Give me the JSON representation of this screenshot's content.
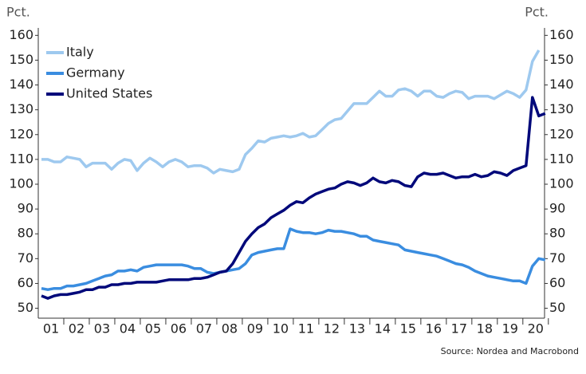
{
  "chart_data": {
    "type": "line",
    "y_label": "Pct.",
    "y2_label": "Pct.",
    "source": "Source: Nordea and Macrobond",
    "x": [
      2001.125,
      2001.375,
      2001.625,
      2001.875,
      2002.125,
      2002.375,
      2002.625,
      2002.875,
      2003.125,
      2003.375,
      2003.625,
      2003.875,
      2004.125,
      2004.375,
      2004.625,
      2004.875,
      2005.125,
      2005.375,
      2005.625,
      2005.875,
      2006.125,
      2006.375,
      2006.625,
      2006.875,
      2007.125,
      2007.375,
      2007.625,
      2007.875,
      2008.125,
      2008.375,
      2008.625,
      2008.875,
      2009.125,
      2009.375,
      2009.625,
      2009.875,
      2010.125,
      2010.375,
      2010.625,
      2010.875,
      2011.125,
      2011.375,
      2011.625,
      2011.875,
      2012.125,
      2012.375,
      2012.625,
      2012.875,
      2013.125,
      2013.375,
      2013.625,
      2013.875,
      2014.125,
      2014.375,
      2014.625,
      2014.875,
      2015.125,
      2015.375,
      2015.625,
      2015.875,
      2016.125,
      2016.375,
      2016.625,
      2016.875,
      2017.125,
      2017.375,
      2017.625,
      2017.875,
      2018.125,
      2018.375,
      2018.625,
      2018.875,
      2019.125,
      2019.375,
      2019.625,
      2019.875,
      2020.125,
      2020.375,
      2020.625,
      2020.875
    ],
    "series": [
      {
        "name": "Italy",
        "color": "#9ec9ef",
        "values": [
          110,
          110,
          109,
          109,
          111,
          110.5,
          110,
          107,
          108.5,
          108.5,
          108.5,
          106,
          108.5,
          110,
          109.5,
          105.5,
          108.5,
          110.5,
          109,
          107,
          109,
          110,
          109,
          107,
          107.5,
          107.5,
          106.5,
          104.5,
          106,
          105.5,
          105,
          106,
          112,
          114.5,
          117.5,
          117,
          118.5,
          119,
          119.5,
          119,
          119.5,
          120.5,
          119,
          119.5,
          122,
          124.5,
          126,
          126.5,
          129.5,
          132.5,
          132.5,
          132.5,
          135,
          137.5,
          135.5,
          135.5,
          138,
          138.5,
          137.5,
          135.5,
          137.5,
          137.5,
          135.5,
          135,
          136.5,
          137.5,
          137,
          134.5,
          135.5,
          135.5,
          135.5,
          134.5,
          136,
          137.5,
          136.5,
          135,
          138,
          149.5,
          154,
          null
        ]
      },
      {
        "name": "Germany",
        "color": "#3a8de0",
        "values": [
          58,
          57.5,
          58,
          58,
          59,
          59,
          59.5,
          60,
          61,
          62,
          63,
          63.5,
          65,
          65,
          65.5,
          65,
          66.5,
          67,
          67.5,
          67.5,
          67.5,
          67.5,
          67.5,
          67,
          66,
          66,
          64.5,
          64,
          64.5,
          65,
          65.5,
          66,
          68,
          71.5,
          72.5,
          73,
          73.5,
          74,
          74,
          82,
          81,
          80.5,
          80.5,
          80,
          80.5,
          81.5,
          81,
          81,
          80.5,
          80,
          79,
          79,
          77.5,
          77,
          76.5,
          76,
          75.5,
          73.5,
          73,
          72.5,
          72,
          71.5,
          71,
          70,
          69,
          68,
          67.5,
          66.5,
          65,
          64,
          63,
          62.5,
          62,
          61.5,
          61,
          61,
          60,
          67,
          70,
          69.5
        ]
      },
      {
        "name": "United States",
        "color": "#00087a",
        "values": [
          55,
          54,
          55,
          55.5,
          55.5,
          56,
          56.5,
          57.5,
          57.5,
          58.5,
          58.5,
          59.5,
          59.5,
          60,
          60,
          60.5,
          60.5,
          60.5,
          60.5,
          61,
          61.5,
          61.5,
          61.5,
          61.5,
          62,
          62,
          62.5,
          63.5,
          64.5,
          65,
          68,
          72.5,
          77,
          80,
          82.5,
          84,
          86.5,
          88,
          89.5,
          91.5,
          93,
          92.5,
          94.5,
          96,
          97,
          98,
          98.5,
          100,
          101,
          100.5,
          99.5,
          100.5,
          102.5,
          101,
          100.5,
          101.5,
          101,
          99.5,
          99,
          103,
          104.5,
          104,
          104,
          104.5,
          103.5,
          102.5,
          103,
          103,
          104,
          103,
          103.5,
          105,
          104.5,
          103.5,
          105.5,
          106.5,
          107.5,
          135,
          127.5,
          128.5
        ]
      }
    ],
    "xlim": [
      2001,
      2020.85
    ],
    "xticks": [
      {
        "value": 2001.5,
        "label": "01"
      },
      {
        "value": 2002.5,
        "label": "02"
      },
      {
        "value": 2003.5,
        "label": "03"
      },
      {
        "value": 2004.5,
        "label": "04"
      },
      {
        "value": 2005.5,
        "label": "05"
      },
      {
        "value": 2006.5,
        "label": "06"
      },
      {
        "value": 2007.5,
        "label": "07"
      },
      {
        "value": 2008.5,
        "label": "08"
      },
      {
        "value": 2009.5,
        "label": "09"
      },
      {
        "value": 2010.5,
        "label": "10"
      },
      {
        "value": 2011.5,
        "label": "11"
      },
      {
        "value": 2012.5,
        "label": "12"
      },
      {
        "value": 2013.5,
        "label": "13"
      },
      {
        "value": 2014.5,
        "label": "14"
      },
      {
        "value": 2015.5,
        "label": "15"
      },
      {
        "value": 2016.5,
        "label": "16"
      },
      {
        "value": 2017.5,
        "label": "17"
      },
      {
        "value": 2018.5,
        "label": "18"
      },
      {
        "value": 2019.5,
        "label": "19"
      },
      {
        "value": 2020.5,
        "label": "20"
      }
    ],
    "ylim": [
      46,
      163
    ],
    "yticks": [
      50,
      60,
      70,
      80,
      90,
      100,
      110,
      120,
      130,
      140,
      150,
      160
    ],
    "y2lim": [
      46,
      163
    ],
    "y2ticks": [
      50,
      60,
      70,
      80,
      90,
      100,
      110,
      120,
      130,
      140,
      150,
      160
    ],
    "legend": "upper left",
    "grid": false
  }
}
